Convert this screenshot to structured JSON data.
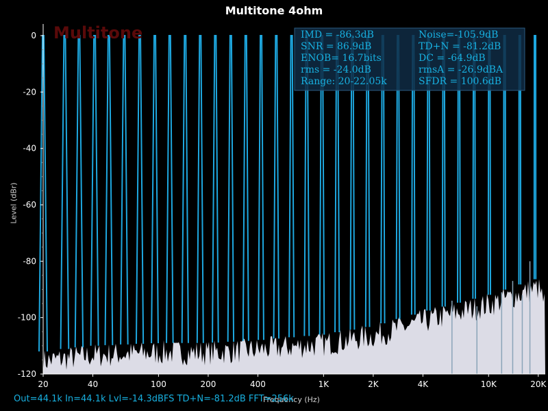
{
  "chart_data": {
    "type": "line",
    "title": "Multitone 4ohm",
    "xlabel": "Frequency (Hz)",
    "ylabel": "Level (dBr)",
    "xscale": "log",
    "xlim": [
      20,
      22050
    ],
    "ylim": [
      -120,
      0
    ],
    "x_ticks": [
      20,
      40,
      100,
      200,
      400,
      1000,
      2000,
      4000,
      10000,
      20000
    ],
    "x_tick_labels": [
      "20",
      "40",
      "100",
      "200",
      "400",
      "1K",
      "2K",
      "4K",
      "10K",
      "20K"
    ],
    "y_ticks": [
      0,
      -20,
      -40,
      -60,
      -80,
      -100,
      -120
    ],
    "y_tick_labels": [
      "0",
      "-20",
      "-40",
      "-60",
      "-80",
      "-100",
      "-120"
    ],
    "watermark": "Multitone",
    "tone_frequencies": [
      20,
      27,
      33,
      41,
      50,
      62,
      77,
      95,
      117,
      145,
      179,
      221,
      274,
      338,
      418,
      517,
      640,
      791,
      978,
      1209,
      1495,
      1849,
      2286,
      2827,
      3496,
      4323,
      5345,
      6610,
      8174,
      10107,
      12498,
      15455,
      19111
    ],
    "tone_level": 0,
    "noise_floor": [
      {
        "x": 20,
        "y": -115
      },
      {
        "x": 40,
        "y": -113
      },
      {
        "x": 100,
        "y": -112
      },
      {
        "x": 200,
        "y": -112
      },
      {
        "x": 400,
        "y": -111
      },
      {
        "x": 1000,
        "y": -109
      },
      {
        "x": 2000,
        "y": -106
      },
      {
        "x": 4000,
        "y": -101
      },
      {
        "x": 10000,
        "y": -95
      },
      {
        "x": 20000,
        "y": -89
      },
      {
        "x": 22050,
        "y": -95
      }
    ],
    "spurs": [
      {
        "x": 6000,
        "y": -94
      },
      {
        "x": 8500,
        "y": -96
      },
      {
        "x": 12000,
        "y": -91
      },
      {
        "x": 14000,
        "y": -87
      },
      {
        "x": 16000,
        "y": -92
      },
      {
        "x": 17800,
        "y": -80
      }
    ],
    "stats": {
      "rows": [
        [
          "IMD = -86.3dB",
          "Noise=-105.9dB"
        ],
        [
          "SNR =  86.9dB",
          "TD+N = -81.2dB"
        ],
        [
          "ENOB=  16.7bits",
          "DC   = -64.9dB"
        ],
        [
          "rms = -24.0dB",
          "rmsA = -26.9dBA"
        ],
        [
          "Range: 20-22.05k",
          "SFDR = 100.6dB"
        ]
      ]
    },
    "colors": {
      "tone": "#1ea8e0",
      "floor": "#dcdce6",
      "background": "#000000",
      "stats_bg": "#0f2c44"
    }
  },
  "footer": "Out=44.1k  In=44.1k Lvl=-14.3dBFS  TD+N=-81.2dB FFT=256k"
}
